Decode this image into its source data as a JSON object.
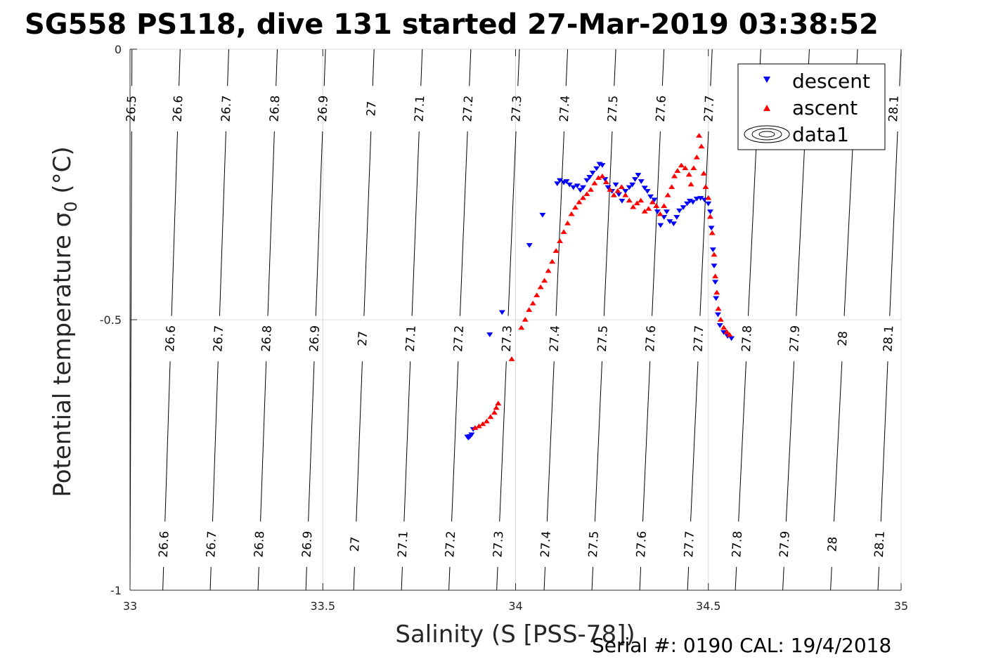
{
  "chart_data": {
    "type": "scatter",
    "title": "SG558 PS118, dive 131 started 27-Mar-2019 03:38:52",
    "xlabel": "Salinity (S [PSS-78])",
    "ylabel": "Potential temperature σ",
    "ylabel_sub": "0",
    "ylabel_unit": " (°C)",
    "xlim": [
      33,
      35
    ],
    "ylim": [
      -1,
      0
    ],
    "xticks": [
      33,
      33.5,
      34,
      34.5,
      35
    ],
    "xtick_labels": [
      "33",
      "33.5",
      "34",
      "34.5",
      "35"
    ],
    "yticks": [
      0,
      -0.5,
      -1
    ],
    "ytick_labels": [
      "0",
      "-0.5",
      "-1"
    ],
    "grid": true,
    "legend_position": "top-right",
    "legend": [
      "descent",
      "ascent",
      "data1"
    ],
    "contour_levels": [
      26.5,
      26.6,
      26.7,
      26.8,
      26.9,
      27,
      27.1,
      27.2,
      27.3,
      27.4,
      27.5,
      27.6,
      27.7,
      27.8,
      27.9,
      28,
      28.1
    ],
    "contour_labels": [
      "26.5",
      "26.6",
      "26.7",
      "26.8",
      "26.9",
      "27",
      "27.1",
      "27.2",
      "27.3",
      "27.4",
      "27.5",
      "27.6",
      "27.7",
      "27.8",
      "27.9",
      "28",
      "28.1"
    ],
    "contour_bottom_x": [
      33.0,
      33.085,
      33.208,
      33.332,
      33.456,
      33.58,
      33.704,
      33.827,
      33.951,
      34.074,
      34.198,
      34.322,
      34.446,
      34.57,
      34.693,
      34.817,
      34.94
    ],
    "contour_top_x": [
      33.005,
      33.13,
      33.256,
      33.382,
      33.507,
      33.633,
      33.758,
      33.884,
      34.01,
      34.135,
      34.26,
      34.385,
      34.51,
      34.636,
      34.762,
      34.887,
      35.0
    ],
    "contour_label_rows": [
      {
        "y": -0.11,
        "labels": [
          "26.5",
          "26.6",
          "26.7",
          "26.8",
          "26.9",
          "27",
          "27.1",
          "27.2",
          "27.3",
          "27.4",
          "27.5",
          "27.6",
          "27.7",
          "28.1"
        ]
      },
      {
        "y": -0.535,
        "labels": [
          "26.6",
          "26.7",
          "26.8",
          "26.9",
          "27",
          "27.1",
          "27.2",
          "27.3",
          "27.4",
          "27.5",
          "27.6",
          "27.7",
          "27.8",
          "27.9",
          "28",
          "28.1"
        ]
      },
      {
        "y": -0.915,
        "labels": [
          "26.6",
          "26.7",
          "26.8",
          "26.9",
          "27",
          "27.1",
          "27.2",
          "27.3",
          "27.4",
          "27.5",
          "27.6",
          "27.7",
          "27.8",
          "27.9",
          "28",
          "28.1"
        ]
      }
    ],
    "series": [
      {
        "name": "descent",
        "color": "#0000ff",
        "marker": "triangle-down",
        "points": [
          [
            33.875,
            -0.716
          ],
          [
            33.878,
            -0.718
          ],
          [
            33.882,
            -0.715
          ],
          [
            33.886,
            -0.712
          ],
          [
            33.89,
            -0.702
          ],
          [
            33.933,
            -0.527
          ],
          [
            33.965,
            -0.486
          ],
          [
            34.036,
            -0.362
          ],
          [
            34.07,
            -0.306
          ],
          [
            34.108,
            -0.248
          ],
          [
            34.115,
            -0.242
          ],
          [
            34.125,
            -0.246
          ],
          [
            34.132,
            -0.244
          ],
          [
            34.14,
            -0.25
          ],
          [
            34.15,
            -0.255
          ],
          [
            34.16,
            -0.252
          ],
          [
            34.168,
            -0.26
          ],
          [
            34.175,
            -0.255
          ],
          [
            34.185,
            -0.242
          ],
          [
            34.192,
            -0.236
          ],
          [
            34.2,
            -0.228
          ],
          [
            34.21,
            -0.22
          ],
          [
            34.218,
            -0.212
          ],
          [
            34.225,
            -0.214
          ],
          [
            34.232,
            -0.24
          ],
          [
            34.24,
            -0.255
          ],
          [
            34.25,
            -0.262
          ],
          [
            34.26,
            -0.25
          ],
          [
            34.268,
            -0.268
          ],
          [
            34.276,
            -0.28
          ],
          [
            34.285,
            -0.262
          ],
          [
            34.295,
            -0.255
          ],
          [
            34.303,
            -0.25
          ],
          [
            34.31,
            -0.24
          ],
          [
            34.318,
            -0.232
          ],
          [
            34.326,
            -0.244
          ],
          [
            34.335,
            -0.256
          ],
          [
            34.342,
            -0.262
          ],
          [
            34.35,
            -0.272
          ],
          [
            34.36,
            -0.278
          ],
          [
            34.368,
            -0.3
          ],
          [
            34.376,
            -0.325
          ],
          [
            34.385,
            -0.31
          ],
          [
            34.392,
            -0.3
          ],
          [
            34.4,
            -0.318
          ],
          [
            34.41,
            -0.322
          ],
          [
            34.418,
            -0.31
          ],
          [
            34.425,
            -0.298
          ],
          [
            34.435,
            -0.292
          ],
          [
            34.445,
            -0.285
          ],
          [
            34.452,
            -0.28
          ],
          [
            34.46,
            -0.282
          ],
          [
            34.47,
            -0.276
          ],
          [
            34.48,
            -0.275
          ],
          [
            34.49,
            -0.278
          ],
          [
            34.5,
            -0.285
          ],
          [
            34.505,
            -0.3
          ],
          [
            34.508,
            -0.33
          ],
          [
            34.512,
            -0.37
          ],
          [
            34.515,
            -0.4
          ],
          [
            34.518,
            -0.43
          ],
          [
            34.52,
            -0.46
          ],
          [
            34.525,
            -0.49
          ],
          [
            34.53,
            -0.51
          ],
          [
            34.54,
            -0.523
          ],
          [
            34.55,
            -0.53
          ],
          [
            34.56,
            -0.534
          ]
        ]
      },
      {
        "name": "ascent",
        "color": "#ff0000",
        "marker": "triangle-up",
        "points": [
          [
            33.895,
            -0.7
          ],
          [
            33.905,
            -0.697
          ],
          [
            33.915,
            -0.693
          ],
          [
            33.925,
            -0.688
          ],
          [
            33.935,
            -0.68
          ],
          [
            33.945,
            -0.672
          ],
          [
            33.95,
            -0.663
          ],
          [
            33.955,
            -0.655
          ],
          [
            33.99,
            -0.573
          ],
          [
            34.015,
            -0.515
          ],
          [
            34.025,
            -0.5
          ],
          [
            34.035,
            -0.482
          ],
          [
            34.045,
            -0.47
          ],
          [
            34.055,
            -0.455
          ],
          [
            34.065,
            -0.44
          ],
          [
            34.075,
            -0.428
          ],
          [
            34.085,
            -0.41
          ],
          [
            34.095,
            -0.393
          ],
          [
            34.105,
            -0.373
          ],
          [
            34.115,
            -0.355
          ],
          [
            34.125,
            -0.338
          ],
          [
            34.135,
            -0.322
          ],
          [
            34.145,
            -0.305
          ],
          [
            34.155,
            -0.293
          ],
          [
            34.165,
            -0.283
          ],
          [
            34.175,
            -0.275
          ],
          [
            34.185,
            -0.268
          ],
          [
            34.195,
            -0.26
          ],
          [
            34.205,
            -0.248
          ],
          [
            34.215,
            -0.238
          ],
          [
            34.225,
            -0.235
          ],
          [
            34.235,
            -0.246
          ],
          [
            34.245,
            -0.26
          ],
          [
            34.255,
            -0.27
          ],
          [
            34.265,
            -0.262
          ],
          [
            34.275,
            -0.255
          ],
          [
            34.285,
            -0.27
          ],
          [
            34.295,
            -0.28
          ],
          [
            34.305,
            -0.292
          ],
          [
            34.315,
            -0.285
          ],
          [
            34.325,
            -0.28
          ],
          [
            34.335,
            -0.3
          ],
          [
            34.345,
            -0.295
          ],
          [
            34.355,
            -0.283
          ],
          [
            34.365,
            -0.29
          ],
          [
            34.375,
            -0.305
          ],
          [
            34.385,
            -0.29
          ],
          [
            34.395,
            -0.27
          ],
          [
            34.405,
            -0.255
          ],
          [
            34.412,
            -0.235
          ],
          [
            34.42,
            -0.225
          ],
          [
            34.43,
            -0.215
          ],
          [
            34.44,
            -0.22
          ],
          [
            34.45,
            -0.232
          ],
          [
            34.455,
            -0.25
          ],
          [
            34.462,
            -0.22
          ],
          [
            34.47,
            -0.2
          ],
          [
            34.476,
            -0.16
          ],
          [
            34.482,
            -0.18
          ],
          [
            34.488,
            -0.23
          ],
          [
            34.493,
            -0.255
          ],
          [
            34.5,
            -0.275
          ],
          [
            34.505,
            -0.31
          ],
          [
            34.51,
            -0.34
          ],
          [
            34.515,
            -0.38
          ],
          [
            34.518,
            -0.42
          ],
          [
            34.522,
            -0.45
          ],
          [
            34.526,
            -0.48
          ],
          [
            34.532,
            -0.5
          ],
          [
            34.54,
            -0.515
          ],
          [
            34.548,
            -0.523
          ],
          [
            34.555,
            -0.528
          ]
        ]
      }
    ]
  },
  "footer": {
    "serial": "Serial #: 0190  CAL: 19/4/2018"
  }
}
